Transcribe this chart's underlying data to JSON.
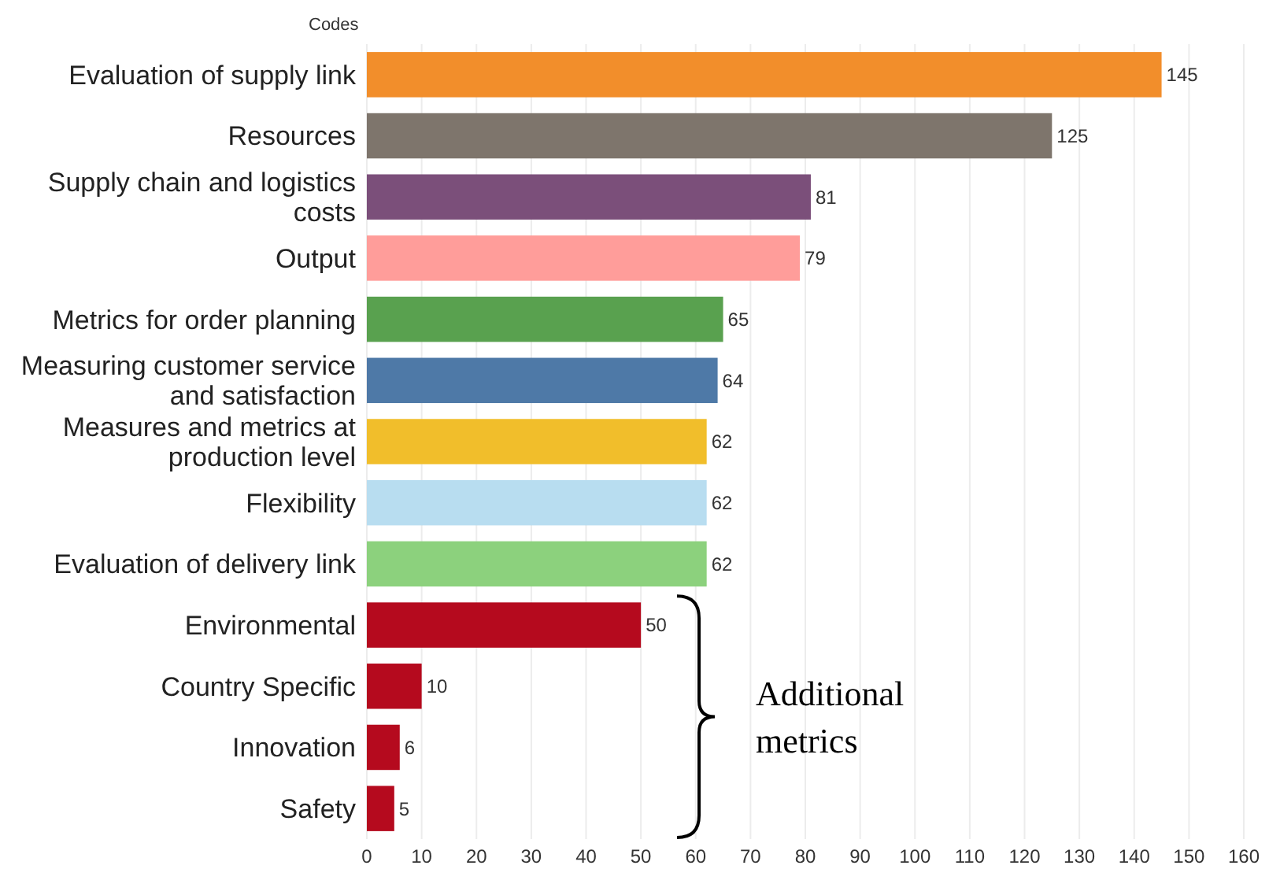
{
  "chart_data": {
    "type": "bar",
    "orientation": "horizontal",
    "ylabel": "Codes",
    "categories": [
      "Evaluation of supply link",
      "Resources",
      "Supply chain and logistics costs",
      "Output",
      "Metrics for order planning",
      "Measuring customer service and satisfaction",
      "Measures and metrics at production level",
      "Flexibility",
      "Evaluation of delivery link",
      "Environmental",
      "Country Specific",
      "Innovation",
      "Safety"
    ],
    "values": [
      145,
      125,
      81,
      79,
      65,
      64,
      62,
      62,
      62,
      50,
      10,
      6,
      5
    ],
    "colors": [
      "#f28e2b",
      "#7e756c",
      "#7b4f7a",
      "#ff9d9a",
      "#59a14f",
      "#4e79a7",
      "#f1be2b",
      "#b8ddf0",
      "#8cd17d",
      "#b50a1e",
      "#b50a1e",
      "#b50a1e",
      "#b50a1e"
    ],
    "xlim": [
      0,
      160
    ],
    "xticks": [
      0,
      10,
      20,
      30,
      40,
      50,
      60,
      70,
      80,
      90,
      100,
      110,
      120,
      130,
      140,
      150,
      160
    ],
    "grid": "x",
    "data_labels": true,
    "annotations": [
      "Additional metrics"
    ]
  }
}
